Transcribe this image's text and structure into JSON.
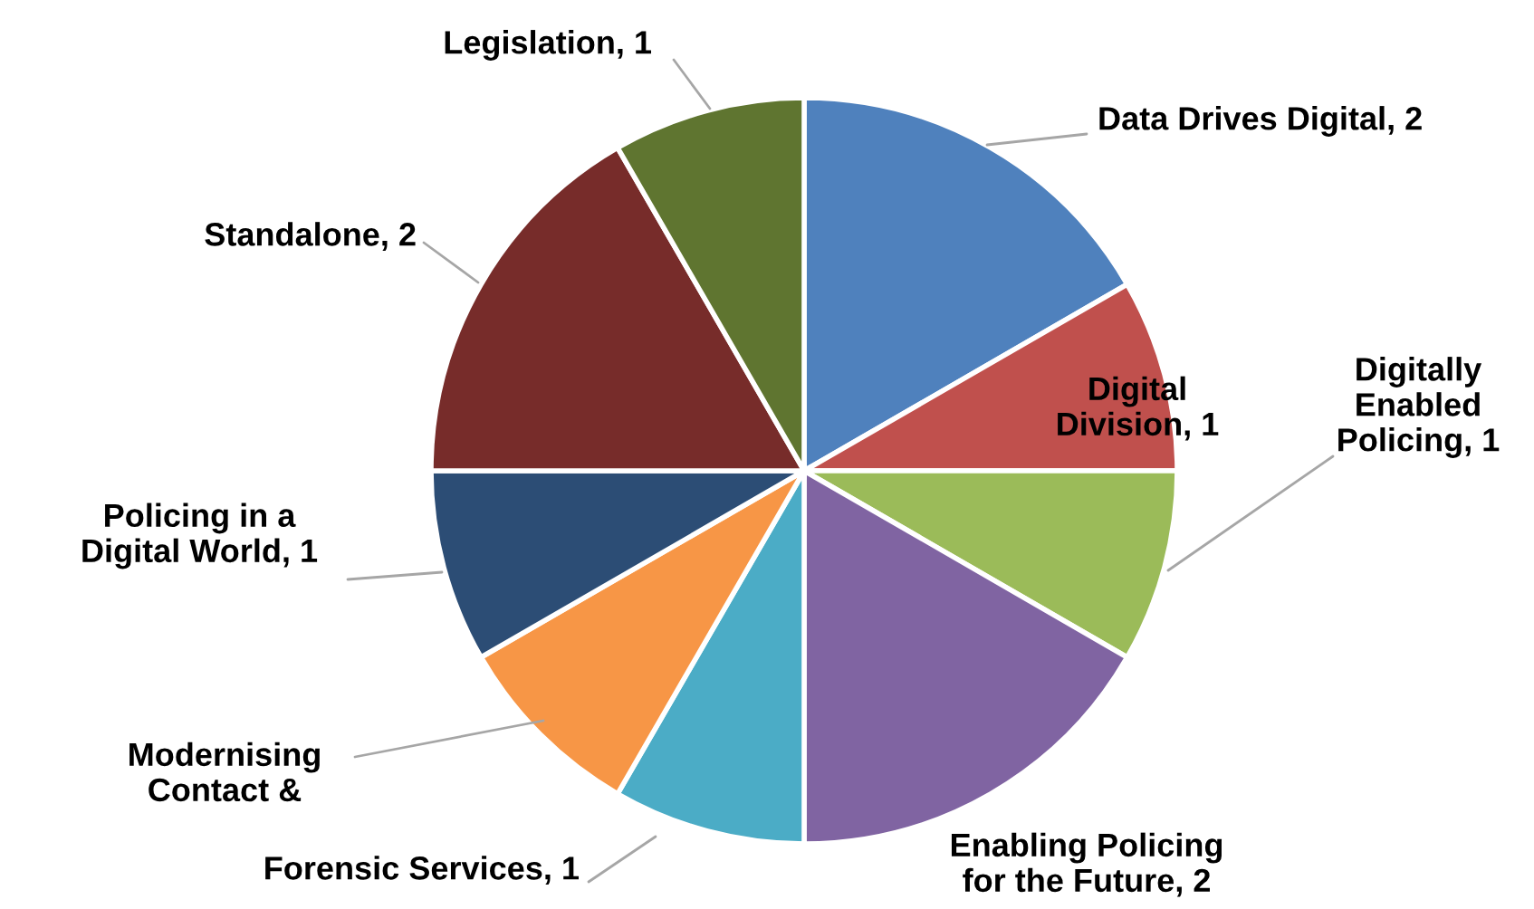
{
  "chart_data": {
    "type": "pie",
    "categories": [
      "Data Drives Digital",
      "Digital\nDivision",
      "Digitally\nEnabled\nPolicing",
      "Enabling Policing\nfor the Future",
      "Forensic Services",
      "Modernising\nContact &",
      "Policing in a\nDigital World",
      "Standalone",
      "Legislation"
    ],
    "value_labels": [
      "2",
      "1",
      "1",
      "2",
      "1",
      null,
      "1",
      "2",
      "1"
    ],
    "values": [
      2,
      1,
      1,
      2,
      1,
      1,
      1,
      2,
      1
    ],
    "colors": [
      "#4f81bd",
      "#c0504d",
      "#9bbb59",
      "#8064a2",
      "#4bacc6",
      "#f79646",
      "#2c4d75",
      "#772c2a",
      "#5f7530"
    ],
    "legend": false
  }
}
